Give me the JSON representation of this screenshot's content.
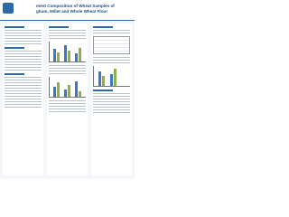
{
  "header": {
    "title_line_1": "ment Composition of Wheat Samples of",
    "title_line_2": "ghum, Millet and Whole Wheat Flour"
  }
}
